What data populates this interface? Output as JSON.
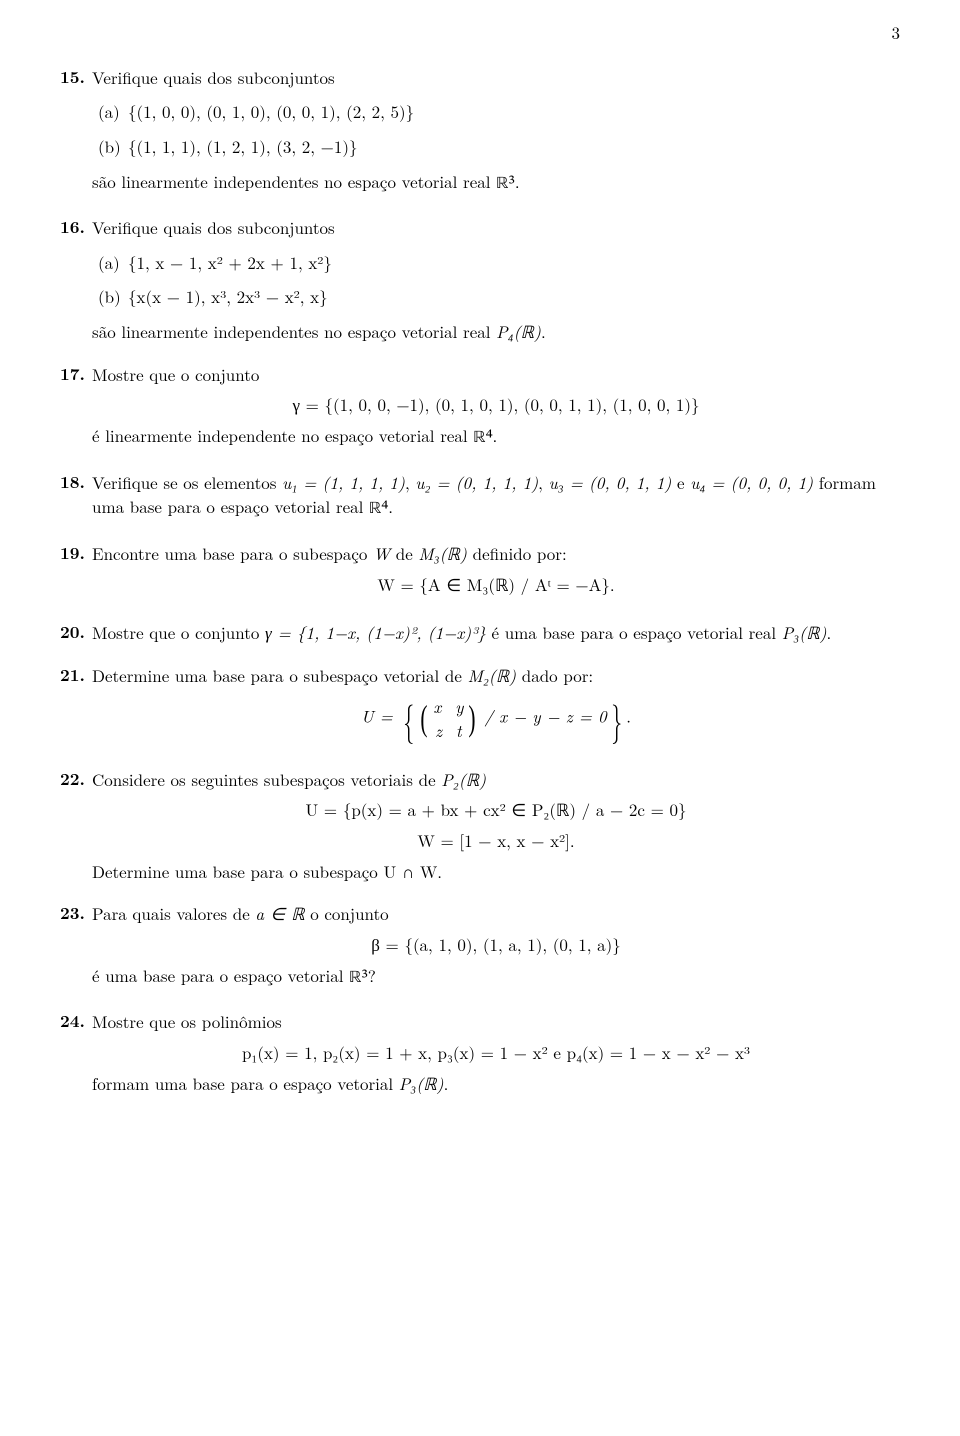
{
  "page_number": "3",
  "items": {
    "15": {
      "lead": "Verifique quais dos subconjuntos",
      "a": "{(1, 0, 0), (0, 1, 0), (0, 0, 1), (2, 2, 5)}",
      "b": "{(1, 1, 1), (1, 2, 1), (3, 2, −1)}",
      "tail_pre": "são linearmente independentes no espaço vetorial real ",
      "tail_math": "ℝ³",
      "tail_post": "."
    },
    "16": {
      "lead": "Verifique quais dos subconjuntos",
      "a": "{1, x − 1, x² + 2x + 1, x²}",
      "b": "{x(x − 1), x³, 2x³ − x², x}",
      "tail_pre": "são linearmente independentes no espaço vetorial real ",
      "tail_math": "P₄(ℝ)",
      "tail_post": "."
    },
    "17": {
      "lead": "Mostre que o conjunto",
      "eq": "γ = {(1, 0, 0, −1), (0, 1, 0, 1), (0, 0, 1, 1), (1, 0, 0, 1)}",
      "tail_pre": "é linearmente independente no espaço vetorial real ",
      "tail_math": "ℝ⁴",
      "tail_post": "."
    },
    "18": {
      "text_pre": "Verifique se os elementos ",
      "u1": "u⃗₁ = (1, 1, 1, 1)",
      "c1": ", ",
      "u2": "u⃗₂ = (0, 1, 1, 1)",
      "c2": ", ",
      "u3": "u⃗₃ = (0, 0, 1, 1)",
      "c3": " e ",
      "u4": "u⃗₄ = (0, 0, 0, 1)",
      "tail_pre": " formam uma base para o espaço vetorial real ",
      "tail_math": "ℝ⁴",
      "tail_post": "."
    },
    "19": {
      "lead_pre": "Encontre uma base para o subespaço ",
      "lead_math1": "W",
      "lead_mid": " de ",
      "lead_math2": "M₃(ℝ)",
      "lead_post": " definido por:",
      "eq": "W = {A ∈ M₃(ℝ) / Aᵗ = −A}."
    },
    "20": {
      "lead_pre": "Mostre que o conjunto ",
      "lead_gamma": "γ = {1, 1−x, (1−x)², (1−x)³}",
      "lead_post1": " é uma base para o espaço vetorial real ",
      "lead_math": "P₃(ℝ)",
      "lead_post2": "."
    },
    "21": {
      "lead_pre": "Determine uma base para o subespaço vetorial de ",
      "lead_math": "M₂(ℝ)",
      "lead_post": " dado por:",
      "U": "U = ",
      "m11": "x",
      "m12": "y",
      "m21": "z",
      "m22": "t",
      "cond": " / x − y − z = 0",
      "end": "."
    },
    "22": {
      "lead_pre": "Considere os seguintes subespaços vetoriais de ",
      "lead_math": "P₂(ℝ)",
      "eq1": "U = {p(x) = a + bx + cx² ∈ P₂(ℝ) / a − 2c = 0}",
      "eq2": "W = [1 − x, x − x²].",
      "tail": "Determine uma base para o subespaço U ∩ W."
    },
    "23": {
      "lead_pre": "Para quais valores de ",
      "lead_math": "a ∈ ℝ",
      "lead_post": " o conjunto",
      "eq": "β = {(a, 1, 0), (1, a, 1), (0, 1, a)}",
      "tail_pre": "é uma base para o espaço vetorial ",
      "tail_math": "ℝ³",
      "tail_post": "?"
    },
    "24": {
      "lead": "Mostre que os polinômios",
      "eq": "p₁(x) = 1, p₂(x) = 1 + x, p₃(x) = 1 − x² e p₄(x) = 1 − x − x² − x³",
      "tail_pre": "formam uma base para o espaço vetorial ",
      "tail_math": "P₃(ℝ)",
      "tail_post": "."
    }
  }
}
